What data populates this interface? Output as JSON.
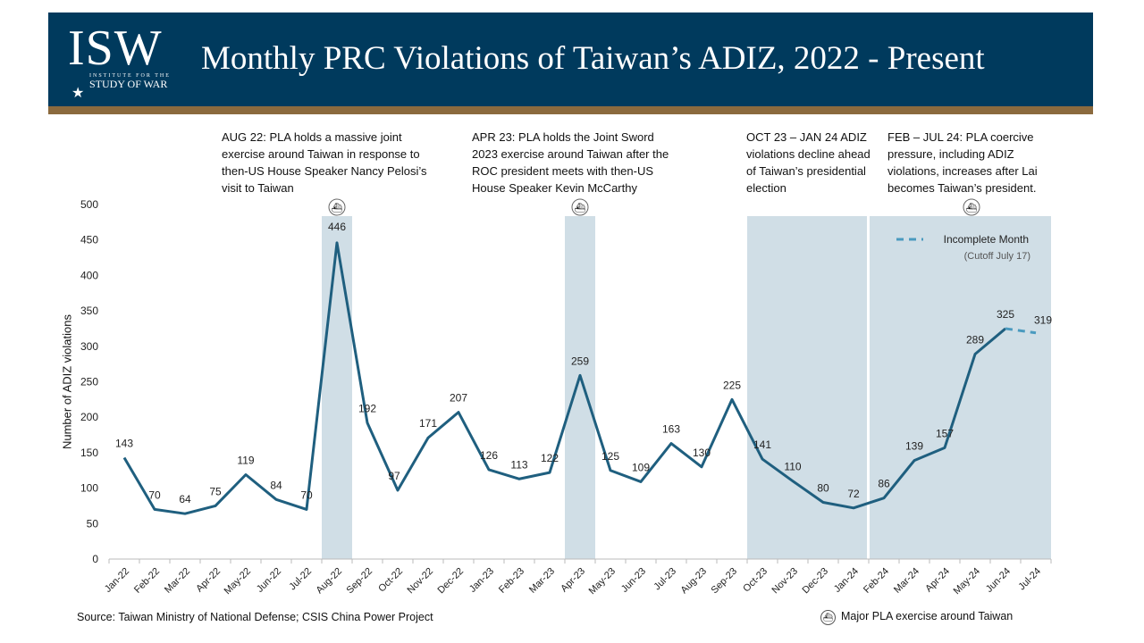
{
  "header": {
    "title": "Monthly PRC Violations of Taiwan’s ADIZ, 2022 - Present",
    "logo": {
      "letters": "ISW",
      "line1": "INSTITUTE FOR THE",
      "line2": "STUDY OF WAR"
    }
  },
  "annotations": [
    "AUG 22: PLA holds a massive joint exercise around Taiwan in response to then-US House Speaker Nancy Pelosi’s visit to Taiwan",
    "APR 23: PLA holds the Joint Sword 2023 exercise around Taiwan after the ROC president meets with then-US House Speaker Kevin McCarthy",
    "OCT 23 – JAN 24 ADIZ violations decline ahead of Taiwan’s presidential election",
    "FEB – JUL 24: PLA coercive pressure, including ADIZ violations, increases after Lai becomes Taiwan’s president."
  ],
  "source": "Source: Taiwan Ministry of National Defense; CSIS China Power Project",
  "exercise_legend": "Major PLA exercise around Taiwan",
  "colors": {
    "line": "#1f5f7f",
    "dashed": "#4a9abf",
    "shade": "#d0dee6",
    "header": "#003a5d",
    "gold": "#8b6a3e"
  },
  "chart_data": {
    "type": "line",
    "ylabel": "Number of ADIZ violations",
    "ylim": [
      0,
      500
    ],
    "yticks": [
      0,
      50,
      100,
      150,
      200,
      250,
      300,
      350,
      400,
      450,
      500
    ],
    "grid": false,
    "categories": [
      "Jan-22",
      "Feb-22",
      "Mar-22",
      "Apr-22",
      "May-22",
      "Jun-22",
      "Jul-22",
      "Aug-22",
      "Sep-22",
      "Oct-22",
      "Nov-22",
      "Dec-22",
      "Jan-23",
      "Feb-23",
      "Mar-23",
      "Apr-23",
      "May-23",
      "Jun-23",
      "Jul-23",
      "Aug-23",
      "Sep-23",
      "Oct-23",
      "Nov-23",
      "Dec-23",
      "Jan-24",
      "Feb-24",
      "Mar-24",
      "Apr-24",
      "May-24",
      "Jun-24",
      "Jul-24"
    ],
    "values": [
      143,
      70,
      64,
      75,
      119,
      84,
      70,
      446,
      192,
      97,
      171,
      207,
      126,
      113,
      122,
      259,
      125,
      109,
      163,
      130,
      225,
      141,
      110,
      80,
      72,
      86,
      139,
      157,
      289,
      325,
      319
    ],
    "incomplete_from_index": 29,
    "legend": {
      "label": "Incomplete Month",
      "note": "(Cutoff July 17)",
      "placement": "top-right"
    },
    "shaded_periods": [
      [
        "Aug-22",
        "Aug-22"
      ],
      [
        "Apr-23",
        "Apr-23"
      ],
      [
        "Oct-23",
        "Jan-24"
      ],
      [
        "Feb-24",
        "Jul-24"
      ]
    ],
    "exercise_markers": [
      "Aug-22",
      "Apr-23",
      "Jun-24"
    ]
  }
}
